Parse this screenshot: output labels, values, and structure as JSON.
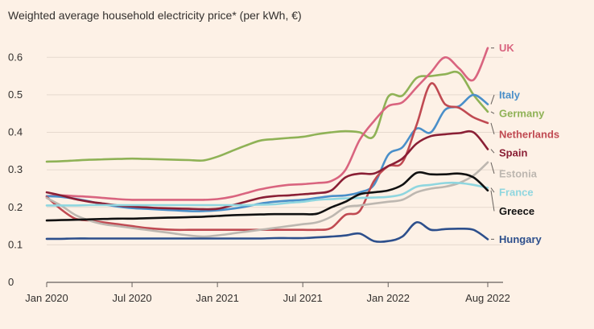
{
  "chart_data": {
    "type": "line",
    "title": "Weighted average household electricity price* (per kWh, €)",
    "xlabel": "",
    "ylabel": "",
    "ylim": [
      0,
      0.65
    ],
    "xlim": [
      0,
      31
    ],
    "x_unit": "months since Jan 2020",
    "yticks": [
      0,
      0.1,
      0.2,
      0.3,
      0.4,
      0.5,
      0.6
    ],
    "ytick_labels": [
      "0",
      "0.1",
      "0.2",
      "0.3",
      "0.4",
      "0.5",
      "0.6"
    ],
    "xticks": [
      0,
      6,
      12,
      18,
      24,
      31
    ],
    "xtick_labels": [
      "Jan 2020",
      "Jul 2020",
      "Jan 2021",
      "Jul 2021",
      "Jan 2022",
      "Aug 2022"
    ],
    "grid": true,
    "legend_position": "right",
    "series": [
      {
        "name": "Germany",
        "color": "#8fb256",
        "x": [
          0,
          1,
          2,
          3,
          4,
          5,
          6,
          7,
          8,
          9,
          10,
          11,
          12,
          13,
          14,
          15,
          16,
          17,
          18,
          19,
          20,
          21,
          22,
          23,
          24,
          25,
          26,
          27,
          28,
          29,
          30,
          31
        ],
        "values": [
          0.322,
          0.323,
          0.325,
          0.327,
          0.328,
          0.329,
          0.33,
          0.329,
          0.328,
          0.327,
          0.326,
          0.325,
          0.335,
          0.35,
          0.365,
          0.378,
          0.382,
          0.385,
          0.388,
          0.395,
          0.4,
          0.403,
          0.4,
          0.39,
          0.495,
          0.498,
          0.545,
          0.55,
          0.555,
          0.558,
          0.5,
          0.455
        ]
      },
      {
        "name": "UK",
        "color": "#d9647f",
        "x": [
          0,
          1,
          2,
          3,
          4,
          5,
          6,
          7,
          8,
          9,
          10,
          11,
          12,
          13,
          14,
          15,
          16,
          17,
          18,
          19,
          20,
          21,
          22,
          23,
          24,
          25,
          26,
          27,
          28,
          29,
          30,
          31
        ],
        "values": [
          0.23,
          0.232,
          0.23,
          0.228,
          0.225,
          0.222,
          0.22,
          0.22,
          0.22,
          0.22,
          0.22,
          0.22,
          0.222,
          0.228,
          0.238,
          0.248,
          0.255,
          0.26,
          0.262,
          0.265,
          0.27,
          0.3,
          0.38,
          0.43,
          0.47,
          0.48,
          0.52,
          0.56,
          0.6,
          0.57,
          0.54,
          0.625
        ]
      },
      {
        "name": "Italy",
        "color": "#4a8fc9",
        "x": [
          0,
          1,
          2,
          3,
          4,
          5,
          6,
          7,
          8,
          9,
          10,
          11,
          12,
          13,
          14,
          15,
          16,
          17,
          18,
          19,
          20,
          21,
          22,
          23,
          24,
          25,
          26,
          27,
          28,
          29,
          30,
          31
        ],
        "values": [
          0.23,
          0.228,
          0.223,
          0.216,
          0.208,
          0.202,
          0.198,
          0.196,
          0.194,
          0.192,
          0.19,
          0.19,
          0.192,
          0.196,
          0.202,
          0.21,
          0.215,
          0.218,
          0.22,
          0.225,
          0.23,
          0.232,
          0.24,
          0.26,
          0.34,
          0.36,
          0.41,
          0.4,
          0.46,
          0.47,
          0.5,
          0.475
        ]
      },
      {
        "name": "Netherlands",
        "color": "#c04a52",
        "x": [
          0,
          1,
          2,
          3,
          4,
          5,
          6,
          7,
          8,
          9,
          10,
          11,
          12,
          13,
          14,
          15,
          16,
          17,
          18,
          19,
          20,
          21,
          22,
          23,
          24,
          25,
          26,
          27,
          28,
          29,
          30,
          31
        ],
        "values": [
          0.228,
          0.195,
          0.17,
          0.165,
          0.16,
          0.155,
          0.15,
          0.145,
          0.142,
          0.14,
          0.14,
          0.14,
          0.14,
          0.14,
          0.14,
          0.14,
          0.14,
          0.14,
          0.14,
          0.14,
          0.145,
          0.18,
          0.19,
          0.27,
          0.31,
          0.32,
          0.42,
          0.53,
          0.475,
          0.465,
          0.44,
          0.425
        ]
      },
      {
        "name": "Spain",
        "color": "#8a1f35",
        "x": [
          0,
          1,
          2,
          3,
          4,
          5,
          6,
          7,
          8,
          9,
          10,
          11,
          12,
          13,
          14,
          15,
          16,
          17,
          18,
          19,
          20,
          21,
          22,
          23,
          24,
          25,
          26,
          27,
          28,
          29,
          30,
          31
        ],
        "values": [
          0.24,
          0.232,
          0.222,
          0.215,
          0.21,
          0.205,
          0.202,
          0.2,
          0.198,
          0.197,
          0.196,
          0.195,
          0.196,
          0.205,
          0.215,
          0.225,
          0.23,
          0.232,
          0.235,
          0.238,
          0.245,
          0.28,
          0.29,
          0.29,
          0.31,
          0.33,
          0.37,
          0.39,
          0.395,
          0.398,
          0.4,
          0.355
        ]
      },
      {
        "name": "Estonia",
        "color": "#bdb7b0",
        "x": [
          0,
          1,
          2,
          3,
          4,
          5,
          6,
          7,
          8,
          9,
          10,
          11,
          12,
          13,
          14,
          15,
          16,
          17,
          18,
          19,
          20,
          21,
          22,
          23,
          24,
          25,
          26,
          27,
          28,
          29,
          30,
          31
        ],
        "values": [
          0.225,
          0.205,
          0.18,
          0.165,
          0.155,
          0.15,
          0.145,
          0.14,
          0.135,
          0.13,
          0.125,
          0.122,
          0.125,
          0.13,
          0.135,
          0.14,
          0.145,
          0.15,
          0.155,
          0.16,
          0.175,
          0.2,
          0.205,
          0.21,
          0.215,
          0.22,
          0.24,
          0.25,
          0.255,
          0.265,
          0.285,
          0.32
        ]
      },
      {
        "name": "France",
        "color": "#8fd6df",
        "x": [
          0,
          1,
          2,
          3,
          4,
          5,
          6,
          7,
          8,
          9,
          10,
          11,
          12,
          13,
          14,
          15,
          16,
          17,
          18,
          19,
          20,
          21,
          22,
          23,
          24,
          25,
          26,
          27,
          28,
          29,
          30,
          31
        ],
        "values": [
          0.205,
          0.205,
          0.205,
          0.206,
          0.206,
          0.206,
          0.206,
          0.206,
          0.206,
          0.206,
          0.206,
          0.206,
          0.206,
          0.206,
          0.206,
          0.207,
          0.208,
          0.212,
          0.215,
          0.22,
          0.222,
          0.224,
          0.225,
          0.226,
          0.228,
          0.235,
          0.255,
          0.26,
          0.265,
          0.265,
          0.26,
          0.252
        ]
      },
      {
        "name": "Greece",
        "color": "#111111",
        "x": [
          0,
          1,
          2,
          3,
          4,
          5,
          6,
          7,
          8,
          9,
          10,
          11,
          12,
          13,
          14,
          15,
          16,
          17,
          18,
          19,
          20,
          21,
          22,
          23,
          24,
          25,
          26,
          27,
          28,
          29,
          30,
          31
        ],
        "values": [
          0.165,
          0.166,
          0.167,
          0.168,
          0.169,
          0.17,
          0.17,
          0.171,
          0.172,
          0.173,
          0.174,
          0.175,
          0.177,
          0.179,
          0.18,
          0.181,
          0.182,
          0.182,
          0.182,
          0.183,
          0.2,
          0.215,
          0.235,
          0.24,
          0.245,
          0.26,
          0.292,
          0.288,
          0.288,
          0.29,
          0.28,
          0.245
        ]
      },
      {
        "name": "Hungary",
        "color": "#2d4f8c",
        "x": [
          0,
          1,
          2,
          3,
          4,
          5,
          6,
          7,
          8,
          9,
          10,
          11,
          12,
          13,
          14,
          15,
          16,
          17,
          18,
          19,
          20,
          21,
          22,
          23,
          24,
          25,
          26,
          27,
          28,
          29,
          30,
          31
        ],
        "values": [
          0.116,
          0.116,
          0.117,
          0.117,
          0.117,
          0.117,
          0.117,
          0.117,
          0.117,
          0.117,
          0.117,
          0.117,
          0.117,
          0.117,
          0.117,
          0.117,
          0.118,
          0.118,
          0.118,
          0.12,
          0.122,
          0.125,
          0.13,
          0.11,
          0.11,
          0.122,
          0.16,
          0.14,
          0.142,
          0.143,
          0.14,
          0.115
        ]
      }
    ],
    "legend": [
      {
        "name": "UK",
        "color": "#d9647f",
        "label_value": 0.625
      },
      {
        "name": "Italy",
        "color": "#4a8fc9",
        "label_value": 0.5
      },
      {
        "name": "Germany",
        "color": "#8fb256",
        "label_value": 0.45
      },
      {
        "name": "Netherlands",
        "color": "#c04a52",
        "label_value": 0.395
      },
      {
        "name": "Spain",
        "color": "#8a1f35",
        "label_value": 0.345
      },
      {
        "name": "Estonia",
        "color": "#bdb7b0",
        "label_value": 0.29
      },
      {
        "name": "France",
        "color": "#8fd6df",
        "label_value": 0.24
      },
      {
        "name": "Greece",
        "color": "#111111",
        "label_value": 0.19
      },
      {
        "name": "Hungary",
        "color": "#2d4f8c",
        "label_value": 0.115
      }
    ]
  }
}
